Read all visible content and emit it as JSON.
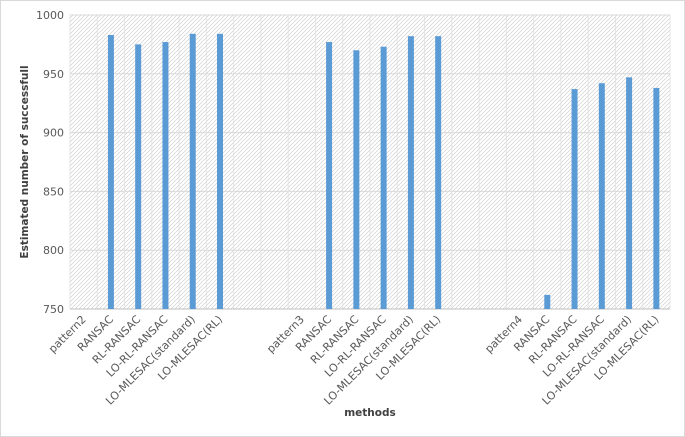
{
  "chart_data": {
    "type": "bar",
    "xlabel": "methods",
    "ylabel": "Estimated number of successfull",
    "ylim": [
      750,
      1000
    ],
    "yticks": [
      750,
      800,
      850,
      900,
      950,
      1000
    ],
    "grid": true,
    "categories": [
      "pattern2",
      "RANSAC",
      "RL-RANSAC",
      "LO-RL-RANSAC",
      "LO-MLESAC(standard)",
      "LO-MLESAC(RL)",
      "",
      "",
      "pattern3",
      "RANSAC",
      "RL-RANSAC",
      "LO-RL-RANSAC",
      "LO-MLESAC(standard)",
      "LO-MLESAC(RL)",
      "",
      "",
      "pattern4",
      "RANSAC",
      "RL-RANSAC",
      "LO-RL-RANSAC",
      "LO-MLESAC(standard)",
      "LO-MLESAC(RL)"
    ],
    "values": [
      null,
      983,
      975,
      977,
      984,
      984,
      null,
      null,
      null,
      977,
      970,
      973,
      982,
      982,
      null,
      null,
      null,
      762,
      937,
      942,
      947,
      938
    ],
    "bar_color": "#5b9bd5"
  }
}
